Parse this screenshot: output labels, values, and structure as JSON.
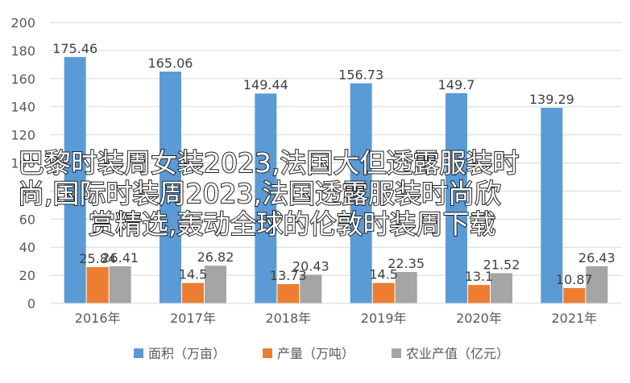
{
  "chart_data": {
    "type": "bar",
    "categories": [
      "2016年",
      "2017年",
      "2018年",
      "2019年",
      "2020年",
      "2021年"
    ],
    "series": [
      {
        "name": "面积（万亩）",
        "color": "#5B9BD5",
        "values": [
          175.46,
          165.06,
          149.44,
          156.73,
          149.7,
          139.29
        ]
      },
      {
        "name": "产量（万吨）",
        "color": "#ED7D31",
        "values": [
          25.84,
          14.5,
          13.73,
          14.5,
          13.1,
          10.87
        ]
      },
      {
        "name": "农业产值（亿元）",
        "color": "#A5A5A5",
        "values": [
          26.41,
          26.82,
          20.43,
          22.35,
          21.52,
          26.43
        ]
      }
    ],
    "ylim": [
      0,
      200
    ],
    "ytick_step": 20,
    "yticks": [
      "0",
      "20",
      "40",
      "60",
      "80",
      "100",
      "120",
      "140",
      "160",
      "180",
      "200"
    ],
    "grid": true,
    "legend_position": "bottom"
  },
  "overlay_title": {
    "line1": "巴黎时装周女装2023,法国大但透露服装时",
    "line2": "尚,国际时装周2023,法国透露服装时尚欣",
    "line3": "赏精选,轰动全球的伦敦时装周下载"
  }
}
